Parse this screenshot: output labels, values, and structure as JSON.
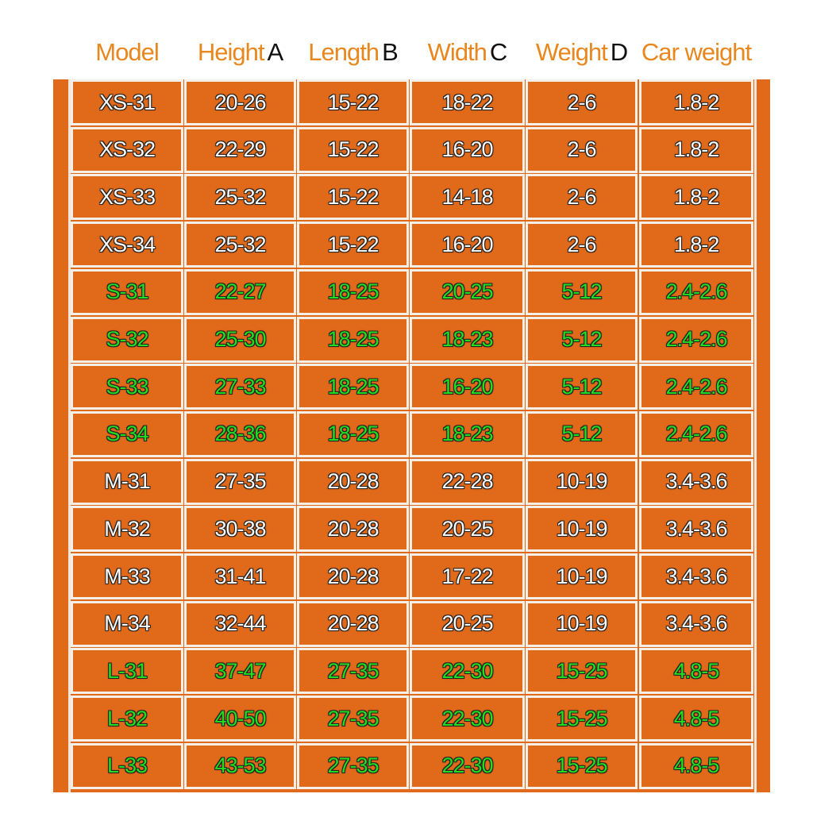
{
  "table": {
    "headers": [
      {
        "label": "Model"
      },
      {
        "label": "Height",
        "letter": "A"
      },
      {
        "label": "Length",
        "letter": "B"
      },
      {
        "label": "Width",
        "letter": "C"
      },
      {
        "label": "Weight",
        "letter": "D"
      },
      {
        "label": "Car weight"
      }
    ],
    "rows": [
      [
        "XS-31",
        "20-26",
        "15-22",
        "18-22",
        "2-6",
        "1.8-2"
      ],
      [
        "XS-32",
        "22-29",
        "15-22",
        "16-20",
        "2-6",
        "1.8-2"
      ],
      [
        "XS-33",
        "25-32",
        "15-22",
        "14-18",
        "2-6",
        "1.8-2"
      ],
      [
        "XS-34",
        "25-32",
        "15-22",
        "16-20",
        "2-6",
        "1.8-2"
      ],
      [
        "S-31",
        "22-27",
        "18-25",
        "20-25",
        "5-12",
        "2.4-2.6"
      ],
      [
        "S-32",
        "25-30",
        "18-25",
        "18-23",
        "5-12",
        "2.4-2.6"
      ],
      [
        "S-33",
        "27-33",
        "18-25",
        "16-20",
        "5-12",
        "2.4-2.6"
      ],
      [
        "S-34",
        "28-36",
        "18-25",
        "18-23",
        "5-12",
        "2.4-2.6"
      ],
      [
        "M-31",
        "27-35",
        "20-28",
        "22-28",
        "10-19",
        "3.4-3.6"
      ],
      [
        "M-32",
        "30-38",
        "20-28",
        "20-25",
        "10-19",
        "3.4-3.6"
      ],
      [
        "M-33",
        "31-41",
        "20-28",
        "17-22",
        "10-19",
        "3.4-3.6"
      ],
      [
        "M-34",
        "32-44",
        "20-28",
        "20-25",
        "10-19",
        "3.4-3.6"
      ],
      [
        "L-31",
        "37-47",
        "27-35",
        "22-30",
        "15-25",
        "4.8-5"
      ],
      [
        "L-32",
        "40-50",
        "27-35",
        "22-30",
        "15-25",
        "4.8-5"
      ],
      [
        "L-33",
        "43-53",
        "27-35",
        "22-30",
        "15-25",
        "4.8-5"
      ]
    ],
    "row_colors": [
      "#ffffff",
      "#ffffff",
      "#ffffff",
      "#ffffff",
      "#22dd22",
      "#22dd22",
      "#22dd22",
      "#22dd22",
      "#ffffff",
      "#ffffff",
      "#ffffff",
      "#ffffff",
      "#22dd22",
      "#22dd22",
      "#22dd22"
    ]
  }
}
